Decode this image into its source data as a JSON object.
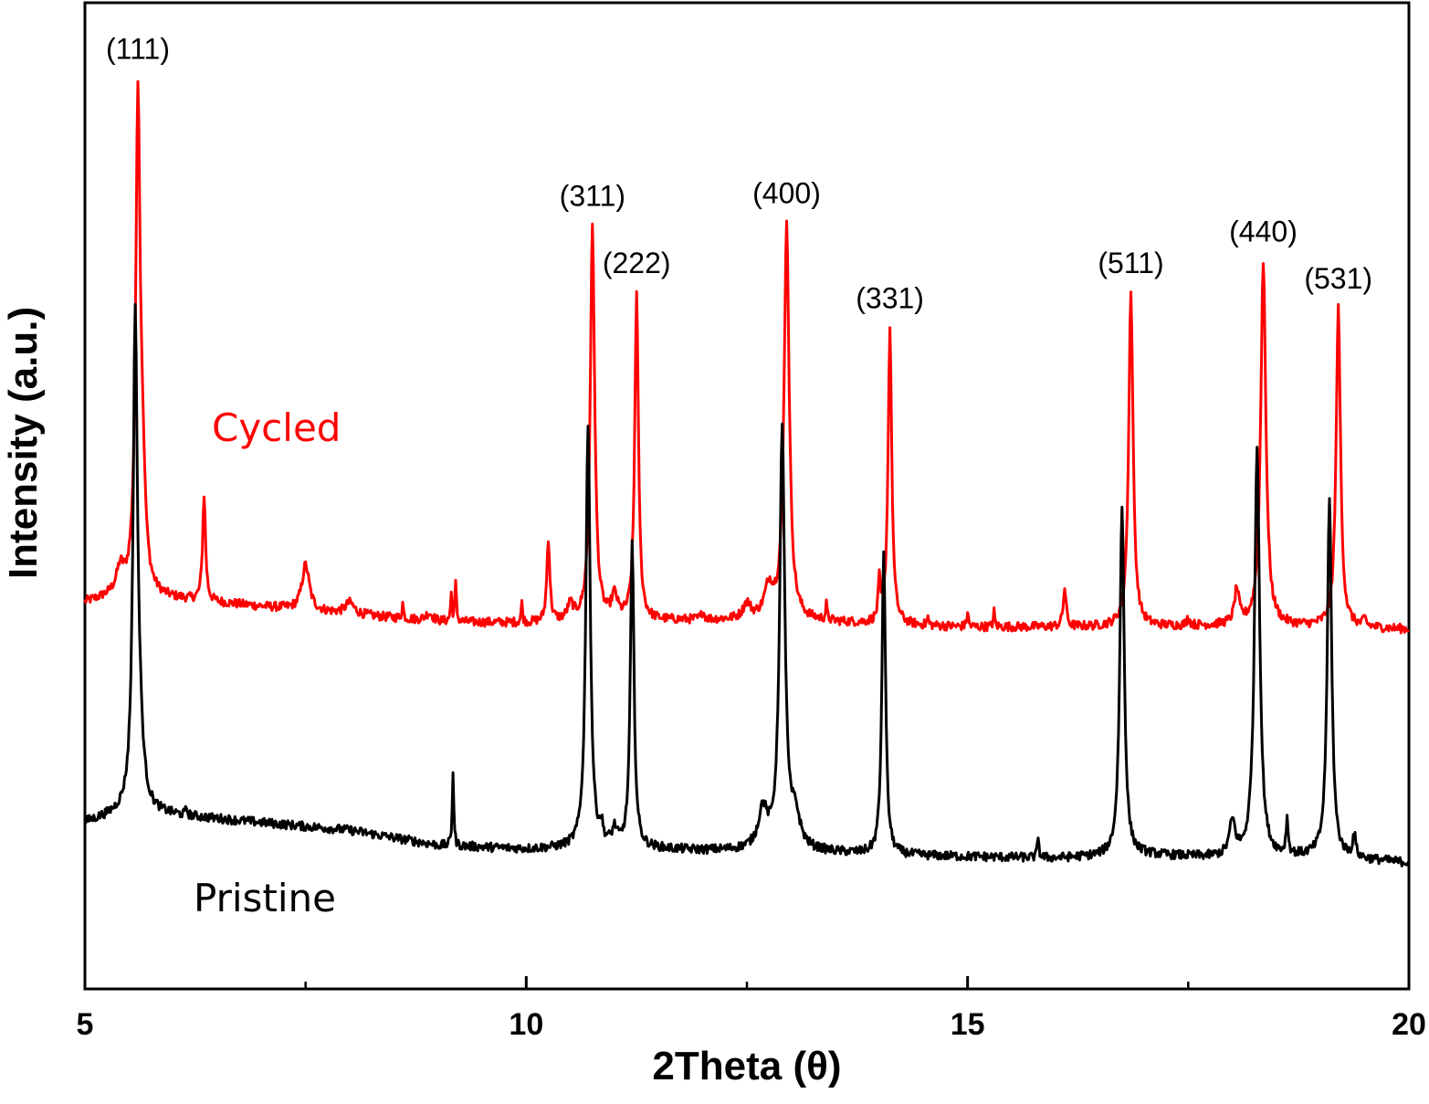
{
  "chart_data": {
    "type": "line",
    "title": "",
    "xlabel": "2Theta (θ)",
    "ylabel": "Intensity (a.u.)",
    "xlim": [
      5,
      20
    ],
    "x_ticks": [
      5,
      10,
      15,
      20
    ],
    "x_minor_ticks": [
      7.5,
      12.5,
      17.5
    ],
    "y_ticks_shown": false,
    "grid": false,
    "series": [
      {
        "name": "Cycled",
        "color": "#ff0000",
        "baseline": [
          [
            5.0,
            3.25
          ],
          [
            5.4,
            3.35
          ],
          [
            6.0,
            3.3
          ],
          [
            7.0,
            3.2
          ],
          [
            8.0,
            3.1
          ],
          [
            9.0,
            3.0
          ],
          [
            10.0,
            2.98
          ],
          [
            11.0,
            3.0
          ],
          [
            12.0,
            3.02
          ],
          [
            13.0,
            3.02
          ],
          [
            14.0,
            2.96
          ],
          [
            15.0,
            2.93
          ],
          [
            16.0,
            2.93
          ],
          [
            17.0,
            2.93
          ],
          [
            18.0,
            2.95
          ],
          [
            19.0,
            2.93
          ],
          [
            20.0,
            2.9
          ]
        ],
        "peaks": [
          [
            5.4,
            0.3,
            0.05
          ],
          [
            5.6,
            6.3,
            0.03
          ],
          [
            5.65,
            1.3,
            0.04
          ],
          [
            6.35,
            1.4,
            0.02
          ],
          [
            7.5,
            0.6,
            0.05
          ],
          [
            8.0,
            0.15,
            0.06
          ],
          [
            8.6,
            0.2,
            0.01
          ],
          [
            8.9,
            0.1,
            0.05
          ],
          [
            9.15,
            0.35,
            0.01
          ],
          [
            9.2,
            0.5,
            0.01
          ],
          [
            9.95,
            0.25,
            0.01
          ],
          [
            10.25,
            1.1,
            0.02
          ],
          [
            10.5,
            0.2,
            0.04
          ],
          [
            10.75,
            5.2,
            0.03
          ],
          [
            11.0,
            0.3,
            0.04
          ],
          [
            11.25,
            4.3,
            0.025
          ],
          [
            12.0,
            0.1,
            0.02
          ],
          [
            12.5,
            0.2,
            0.05
          ],
          [
            12.75,
            0.4,
            0.06
          ],
          [
            12.95,
            5.2,
            0.035
          ],
          [
            13.4,
            0.2,
            0.01
          ],
          [
            14.0,
            0.5,
            0.015
          ],
          [
            14.12,
            3.9,
            0.025
          ],
          [
            14.55,
            0.1,
            0.01
          ],
          [
            15.0,
            0.2,
            0.01
          ],
          [
            15.3,
            0.2,
            0.01
          ],
          [
            16.1,
            0.5,
            0.02
          ],
          [
            16.85,
            4.4,
            0.03
          ],
          [
            17.5,
            0.1,
            0.02
          ],
          [
            18.05,
            0.45,
            0.03
          ],
          [
            18.35,
            4.8,
            0.035
          ],
          [
            19.2,
            4.2,
            0.03
          ],
          [
            19.5,
            0.1,
            0.02
          ]
        ]
      },
      {
        "name": "Pristine",
        "color": "#000000",
        "baseline": [
          [
            5.0,
            0.35
          ],
          [
            5.5,
            0.5
          ],
          [
            6.0,
            0.45
          ],
          [
            7.0,
            0.35
          ],
          [
            8.0,
            0.25
          ],
          [
            9.0,
            0.05
          ],
          [
            10.0,
            0.0
          ],
          [
            11.0,
            0.02
          ],
          [
            12.0,
            -0.02
          ],
          [
            13.0,
            -0.02
          ],
          [
            14.0,
            -0.08
          ],
          [
            15.0,
            -0.1
          ],
          [
            16.0,
            -0.12
          ],
          [
            17.0,
            -0.08
          ],
          [
            18.0,
            -0.12
          ],
          [
            19.0,
            -0.1
          ],
          [
            20.0,
            -0.18
          ]
        ],
        "peaks": [
          [
            5.57,
            6.3,
            0.03
          ],
          [
            5.62,
            0.7,
            0.05
          ],
          [
            6.15,
            0.1,
            0.01
          ],
          [
            9.17,
            1.0,
            0.01
          ],
          [
            10.7,
            5.6,
            0.03
          ],
          [
            10.85,
            0.2,
            0.02
          ],
          [
            11.0,
            0.2,
            0.03
          ],
          [
            11.2,
            4.0,
            0.025
          ],
          [
            12.68,
            0.5,
            0.06
          ],
          [
            12.9,
            5.5,
            0.035
          ],
          [
            13.05,
            0.4,
            0.06
          ],
          [
            14.05,
            4.0,
            0.025
          ],
          [
            15.8,
            0.3,
            0.01
          ],
          [
            16.75,
            4.6,
            0.03
          ],
          [
            18.0,
            0.45,
            0.04
          ],
          [
            18.28,
            5.4,
            0.035
          ],
          [
            18.62,
            0.45,
            0.015
          ],
          [
            19.1,
            4.7,
            0.03
          ],
          [
            19.38,
            0.3,
            0.02
          ]
        ]
      }
    ],
    "annotations": [
      {
        "text": "(111)",
        "x": 5.6
      },
      {
        "text": "(311)",
        "x": 10.75
      },
      {
        "text": "(222)",
        "x": 11.25
      },
      {
        "text": "(400)",
        "x": 12.95
      },
      {
        "text": "(331)",
        "x": 14.12
      },
      {
        "text": "(511)",
        "x": 16.85
      },
      {
        "text": "(440)",
        "x": 18.35
      },
      {
        "text": "(531)",
        "x": 19.2
      }
    ]
  }
}
